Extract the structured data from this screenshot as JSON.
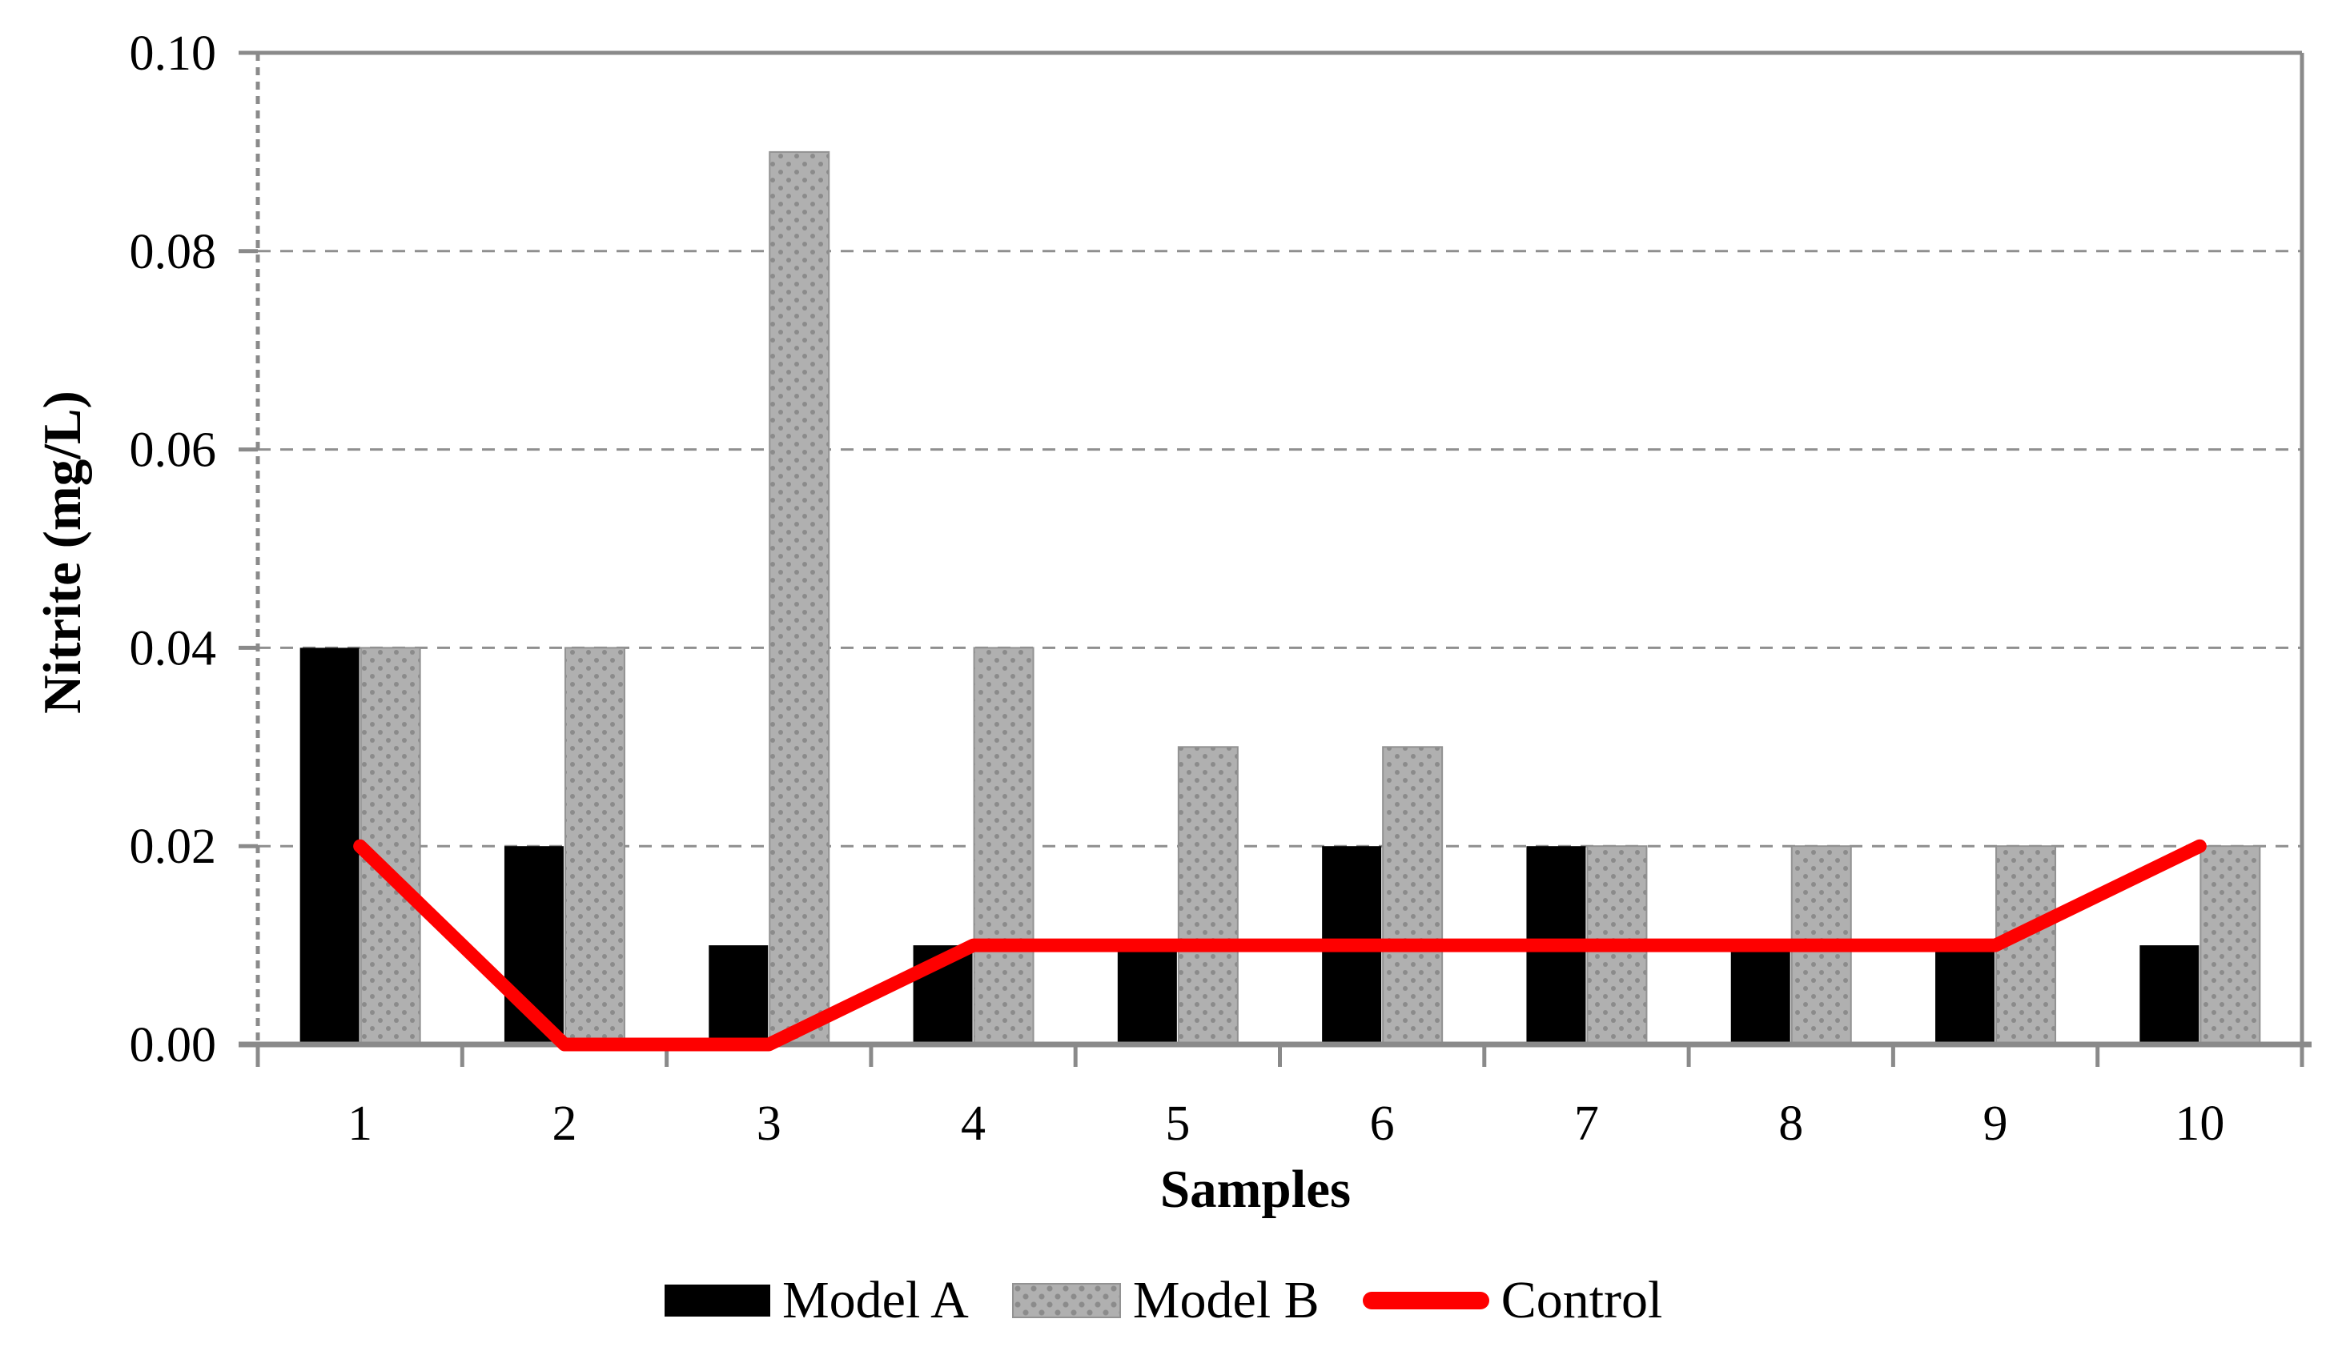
{
  "chart_data": {
    "type": "bar",
    "subtype": "grouped-bars-with-line-overlay",
    "categories": [
      "1",
      "2",
      "3",
      "4",
      "5",
      "6",
      "7",
      "8",
      "9",
      "10"
    ],
    "series": [
      {
        "name": "Model A",
        "type": "bar",
        "color": "#000000",
        "values": [
          0.04,
          0.02,
          0.01,
          0.01,
          0.01,
          0.02,
          0.02,
          0.01,
          0.01,
          0.01
        ]
      },
      {
        "name": "Model B",
        "type": "bar",
        "color": "#b0b0b0",
        "values": [
          0.04,
          0.04,
          0.09,
          0.04,
          0.03,
          0.03,
          0.02,
          0.02,
          0.02,
          0.02
        ]
      },
      {
        "name": "Control",
        "type": "line",
        "color": "#fe0000",
        "values": [
          0.02,
          0.0,
          0.0,
          0.01,
          0.01,
          0.01,
          0.01,
          0.01,
          0.01,
          0.02
        ]
      }
    ],
    "title": "",
    "xlabel": "Samples",
    "ylabel": "Nitrite (mg/L)",
    "ylim": [
      0,
      0.1
    ],
    "ytick_step": 0.02,
    "ytick_labels": [
      "0.00",
      "0.02",
      "0.04",
      "0.06",
      "0.08",
      "0.10"
    ],
    "grid": true,
    "gridline_style": "dashed",
    "legend_position": "bottom",
    "colors": {
      "axis": "#8a8a8a",
      "gridline": "#8f8f8f",
      "bar_a": "#000000",
      "bar_b_base": "#b0b0b0",
      "bar_b_dots": "#8b8b8b",
      "control_line": "#fe0000",
      "text": "#000000"
    }
  }
}
